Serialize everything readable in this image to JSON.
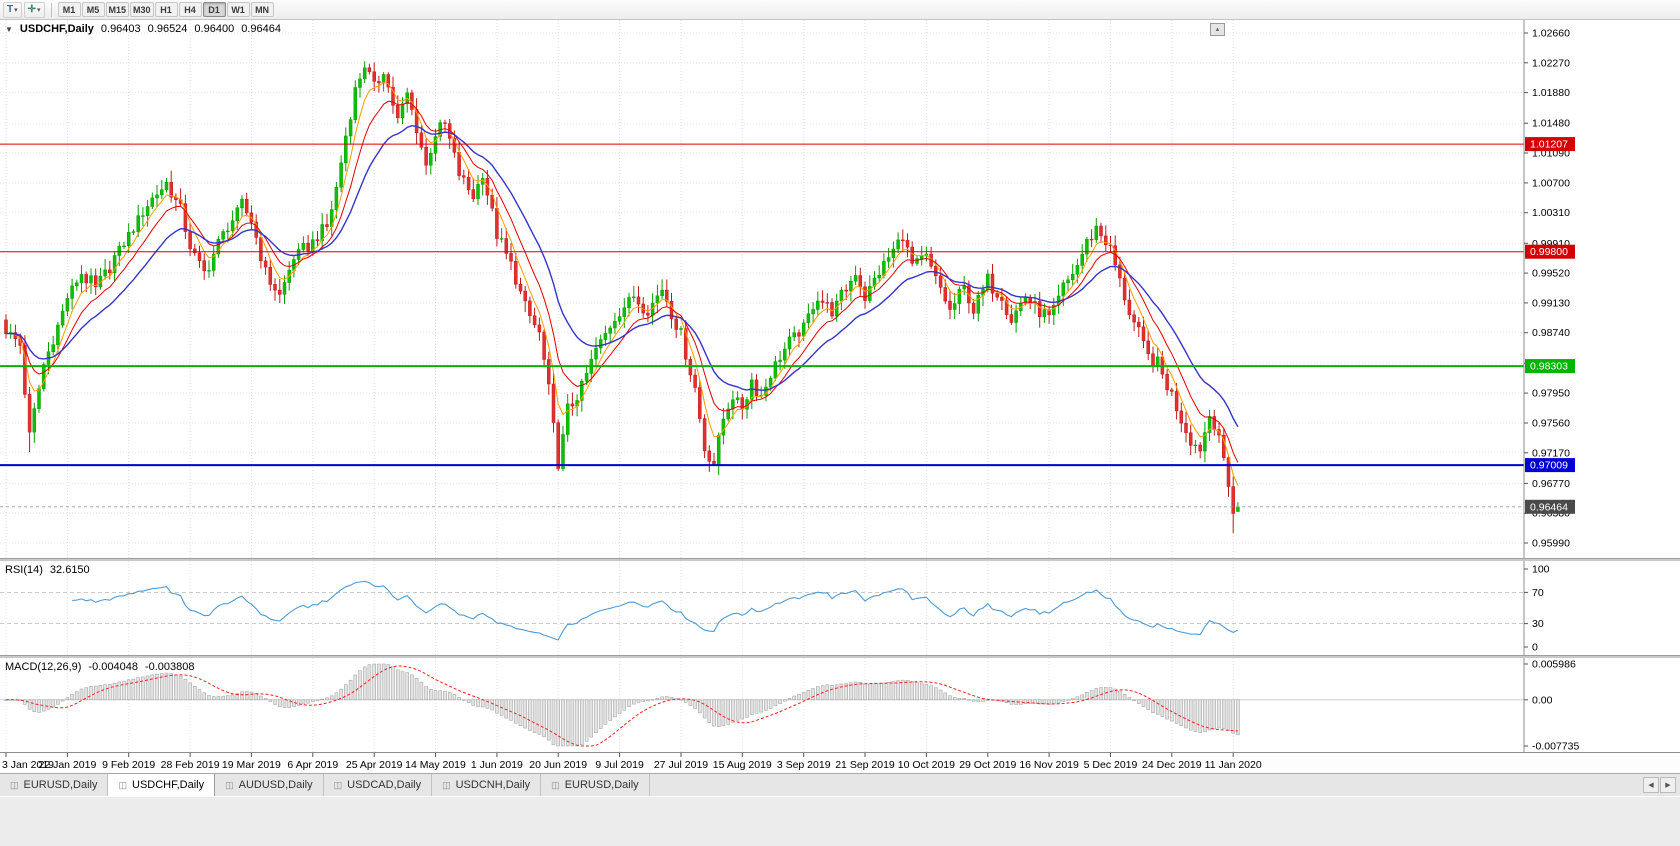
{
  "icons": {
    "collapse_arrow": "▼",
    "dropdown_caret": "▾",
    "templates_glyph": "T",
    "crosshair_glyph": "✛",
    "scroll_marker": "▲",
    "tab_scroll_left": "◀",
    "tab_scroll_right": "▶",
    "tab_chart_icon": "◫"
  },
  "toolbar": {
    "timeframes": [
      {
        "label": "M1",
        "active": false
      },
      {
        "label": "M5",
        "active": false
      },
      {
        "label": "M15",
        "active": false
      },
      {
        "label": "M30",
        "active": false
      },
      {
        "label": "H1",
        "active": false
      },
      {
        "label": "H4",
        "active": false
      },
      {
        "label": "D1",
        "active": true
      },
      {
        "label": "W1",
        "active": false
      },
      {
        "label": "MN",
        "active": false
      }
    ]
  },
  "price_panel": {
    "symbol": "USDCHF,Daily",
    "open": "0.96403",
    "high": "0.96524",
    "low": "0.96400",
    "close": "0.96464",
    "scale_top": 1.0266,
    "scale_bottom": 0.9599,
    "scale_labels": [
      "1.02660",
      "1.02270",
      "1.01880",
      "1.01480",
      "1.01090",
      "1.00700",
      "1.00310",
      "0.99910",
      "0.99520",
      "0.99130",
      "0.98740",
      "0.98340",
      "0.97950",
      "0.97560",
      "0.97170",
      "0.96770",
      "0.96380",
      "0.95990"
    ],
    "levels": [
      {
        "label": "1.01207",
        "value": 1.01207,
        "color": "#d40000",
        "width": 1
      },
      {
        "label": "0.99800",
        "value": 0.998,
        "color": "#d40000",
        "width": 1
      },
      {
        "label": "0.98303",
        "value": 0.98303,
        "color": "#00b400",
        "width": 2
      },
      {
        "label": "0.97009",
        "value": 0.97009,
        "color": "#0000d4",
        "width": 2
      }
    ],
    "current_price": {
      "label": "0.96464",
      "value": 0.96464,
      "box_color": "#4a4a4a"
    }
  },
  "chart_data": {
    "type": "candlestick",
    "symbol": "USDCHF",
    "timeframe": "Daily",
    "bars": 262,
    "bars_per_label": 13,
    "x_labels": [
      "3 Jan 2019",
      "22 Jan 2019",
      "9 Feb 2019",
      "28 Feb 2019",
      "19 Mar 2019",
      "6 Apr 2019",
      "25 Apr 2019",
      "14 May 2019",
      "1 Jun 2019",
      "20 Jun 2019",
      "9 Jul 2019",
      "27 Jul 2019",
      "15 Aug 2019",
      "3 Sep 2019",
      "21 Sep 2019",
      "10 Oct 2019",
      "29 Oct 2019",
      "16 Nov 2019",
      "5 Dec 2019",
      "24 Dec 2019",
      "11 Jan 2020"
    ],
    "ylim": [
      0.9599,
      1.0266
    ],
    "ohlc_current": {
      "open": 0.96403,
      "high": 0.96524,
      "low": 0.964,
      "close": 0.96464
    },
    "close_waypoints": [
      [
        0,
        0.9878
      ],
      [
        3,
        0.9858
      ],
      [
        5,
        0.9738
      ],
      [
        8,
        0.9832
      ],
      [
        11,
        0.9882
      ],
      [
        13,
        0.992
      ],
      [
        16,
        0.9952
      ],
      [
        19,
        0.993
      ],
      [
        23,
        0.9972
      ],
      [
        26,
        1.0002
      ],
      [
        30,
        1.0042
      ],
      [
        34,
        1.007
      ],
      [
        37,
        1.0032
      ],
      [
        39,
        0.9986
      ],
      [
        42,
        0.9952
      ],
      [
        46,
        1.0002
      ],
      [
        50,
        1.004
      ],
      [
        52,
        1.0022
      ],
      [
        55,
        0.9952
      ],
      [
        58,
        0.9922
      ],
      [
        61,
        0.9972
      ],
      [
        65,
        0.9992
      ],
      [
        68,
        1.0012
      ],
      [
        70,
        1.0062
      ],
      [
        72,
        1.0132
      ],
      [
        74,
        1.0192
      ],
      [
        76,
        1.0226
      ],
      [
        78,
        1.0192
      ],
      [
        80,
        1.0216
      ],
      [
        83,
        1.0152
      ],
      [
        85,
        1.0186
      ],
      [
        87,
        1.0142
      ],
      [
        89,
        1.0092
      ],
      [
        91,
        1.0136
      ],
      [
        93,
        1.0146
      ],
      [
        96,
        1.0082
      ],
      [
        99,
        1.0052
      ],
      [
        101,
        1.0082
      ],
      [
        104,
        1.0002
      ],
      [
        107,
        0.9962
      ],
      [
        110,
        0.9906
      ],
      [
        113,
        0.9872
      ],
      [
        115,
        0.9802
      ],
      [
        117,
        0.9702
      ],
      [
        119,
        0.9772
      ],
      [
        122,
        0.9802
      ],
      [
        125,
        0.9852
      ],
      [
        128,
        0.9882
      ],
      [
        130,
        0.9902
      ],
      [
        133,
        0.9922
      ],
      [
        136,
        0.9902
      ],
      [
        139,
        0.9932
      ],
      [
        141,
        0.9902
      ],
      [
        143,
        0.9872
      ],
      [
        146,
        0.9802
      ],
      [
        148,
        0.9722
      ],
      [
        150,
        0.9704
      ],
      [
        152,
        0.9762
      ],
      [
        154,
        0.9792
      ],
      [
        156,
        0.9776
      ],
      [
        158,
        0.9812
      ],
      [
        160,
        0.9792
      ],
      [
        163,
        0.9832
      ],
      [
        166,
        0.9862
      ],
      [
        169,
        0.9882
      ],
      [
        172,
        0.9922
      ],
      [
        175,
        0.9902
      ],
      [
        178,
        0.9932
      ],
      [
        180,
        0.9952
      ],
      [
        182,
        0.9922
      ],
      [
        185,
        0.9952
      ],
      [
        188,
        0.9982
      ],
      [
        190,
        1.0002
      ],
      [
        192,
        0.9962
      ],
      [
        195,
        0.9972
      ],
      [
        198,
        0.9932
      ],
      [
        200,
        0.9902
      ],
      [
        203,
        0.9932
      ],
      [
        205,
        0.9902
      ],
      [
        208,
        0.9942
      ],
      [
        211,
        0.9922
      ],
      [
        213,
        0.9892
      ],
      [
        216,
        0.9922
      ],
      [
        219,
        0.9902
      ],
      [
        221,
        0.9892
      ],
      [
        224,
        0.9932
      ],
      [
        227,
        0.9962
      ],
      [
        229,
        0.9992
      ],
      [
        231,
        1.0012
      ],
      [
        234,
        0.9982
      ],
      [
        236,
        0.9942
      ],
      [
        238,
        0.9902
      ],
      [
        240,
        0.9872
      ],
      [
        242,
        0.9842
      ],
      [
        244,
        0.9832
      ],
      [
        247,
        0.9792
      ],
      [
        249,
        0.9762
      ],
      [
        251,
        0.9732
      ],
      [
        253,
        0.9722
      ],
      [
        255,
        0.9766
      ],
      [
        257,
        0.9742
      ],
      [
        258,
        0.9702
      ],
      [
        259,
        0.9672
      ],
      [
        260,
        0.9642
      ],
      [
        261,
        0.96464
      ]
    ],
    "high_overrides": [
      [
        76,
        1.0229
      ]
    ],
    "low_overrides": [
      [
        5,
        0.9718
      ],
      [
        117,
        0.9693
      ],
      [
        150,
        0.9701
      ],
      [
        260,
        0.9612
      ]
    ],
    "moving_averages": [
      {
        "period": 5,
        "color": "#ff9c00",
        "width": 1
      },
      {
        "period": 10,
        "color": "#e60000",
        "width": 1
      },
      {
        "period": 20,
        "color": "#3434cc",
        "width": 1.4
      }
    ],
    "bull_color": "#0fbf06",
    "bear_color": "#e23030"
  },
  "rsi_panel": {
    "title": "RSI(14)",
    "value": "32.6150",
    "period": 14,
    "line_color": "#4d9bd8",
    "scale": [
      {
        "label": "100",
        "value": 100,
        "dashed": false
      },
      {
        "label": "70",
        "value": 70,
        "dashed": true
      },
      {
        "label": "30",
        "value": 30,
        "dashed": true
      },
      {
        "label": "0",
        "value": 0,
        "dashed": false
      }
    ]
  },
  "macd_panel": {
    "title": "MACD(12,26,9)",
    "value_main": "-0.004048",
    "value_signal": "-0.003808",
    "fast": 12,
    "slow": 26,
    "signal": 9,
    "histogram_color": "#e3e3e3",
    "histogram_stroke": "#9b9b9b",
    "signal_color": "#ff2020",
    "max": 0.005986,
    "min": -0.007735,
    "scale": [
      {
        "label": "0.005986",
        "value": 0.005986
      },
      {
        "label": "0.00",
        "value": 0
      },
      {
        "label": "-0.007735",
        "value": -0.007735
      }
    ]
  },
  "tab_bar": {
    "tabs": [
      {
        "label": "EURUSD,Daily",
        "active": false
      },
      {
        "label": "USDCHF,Daily",
        "active": true
      },
      {
        "label": "AUDUSD,Daily",
        "active": false
      },
      {
        "label": "USDCAD,Daily",
        "active": false
      },
      {
        "label": "USDCNH,Daily",
        "active": false
      },
      {
        "label": "EURUSD,Daily",
        "active": false
      }
    ]
  }
}
